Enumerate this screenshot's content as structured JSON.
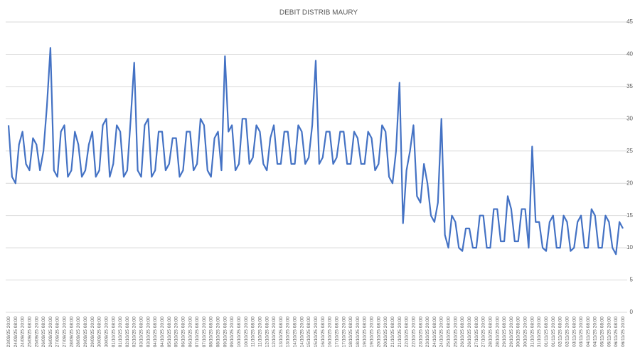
{
  "chart_data": {
    "type": "line",
    "title": "DEBIT DISTRIB MAURY",
    "categories": [
      "23/09/25 20:00",
      null,
      "24/09/25 08:00",
      null,
      "24/09/25 20:00",
      null,
      "25/09/25 08:00",
      null,
      "25/09/25 20:00",
      null,
      "26/09/25 08:00",
      null,
      "26/09/25 20:00",
      null,
      "27/09/25 08:00",
      null,
      "27/09/25 20:00",
      null,
      "28/09/25 08:00",
      null,
      "28/09/25 20:00",
      null,
      "29/09/25 08:00",
      null,
      "29/09/25 20:00",
      null,
      "30/09/25 08:00",
      null,
      "30/09/25 20:00",
      null,
      "01/10/25 08:00",
      null,
      "01/10/25 20:00",
      null,
      "02/10/25 08:00",
      null,
      "02/10/25 20:00",
      null,
      "03/10/25 08:00",
      null,
      "03/10/25 20:00",
      null,
      "04/10/25 08:00",
      null,
      "04/10/25 20:00",
      null,
      "05/10/25 08:00",
      null,
      "05/10/25 20:00",
      null,
      "06/10/25 08:00",
      null,
      "06/10/25 20:00",
      null,
      "07/10/25 08:00",
      null,
      "07/10/25 20:00",
      null,
      "08/10/25 08:00",
      null,
      "08/10/25 20:00",
      null,
      "09/10/25 08:00",
      null,
      "09/10/25 20:00",
      null,
      "10/10/25 08:00",
      null,
      "10/10/25 20:00",
      null,
      "11/10/25 08:00",
      null,
      "11/10/25 20:00",
      null,
      "12/10/25 08:00",
      null,
      "12/10/25 20:00",
      null,
      "13/10/25 08:00",
      null,
      "13/10/25 20:00",
      null,
      "14/10/25 08:00",
      null,
      "14/10/25 20:00",
      null,
      "15/10/25 08:00",
      null,
      "15/10/25 20:00",
      null,
      "16/10/25 08:00",
      null,
      "16/10/25 20:00",
      null,
      "17/10/25 08:00",
      null,
      "17/10/25 20:00",
      null,
      "18/10/25 08:00",
      null,
      "18/10/25 20:00",
      null,
      "19/10/25 08:00",
      null,
      "19/10/25 20:00",
      null,
      "20/10/25 08:00",
      null,
      "20/10/25 20:00",
      null,
      "21/10/25 08:00",
      null,
      "21/10/25 20:00",
      null,
      "22/10/25 08:00",
      null,
      "22/10/25 20:00",
      null,
      "23/10/25 08:00",
      null,
      "23/10/25 20:00",
      null,
      "24/10/25 08:00",
      null,
      "24/10/25 20:00",
      null,
      "25/10/25 08:00",
      null,
      "25/10/25 20:00",
      null,
      "26/10/25 08:00",
      null,
      "26/10/25 20:00",
      null,
      "27/10/25 08:00",
      null,
      "27/10/25 20:00",
      null,
      "28/10/25 08:00",
      null,
      "28/10/25 20:00",
      null,
      "29/10/25 08:00",
      null,
      "29/10/25 20:00",
      null,
      "30/10/25 08:00",
      null,
      "30/10/25 20:00",
      null,
      "31/10/25 08:00",
      null,
      "31/10/25 20:00",
      null,
      "01/11/25 08:00",
      null,
      "01/11/25 20:00",
      null,
      "02/11/25 08:00",
      null,
      "02/11/25 20:00",
      null,
      "03/11/25 08:00",
      null,
      "03/11/25 20:00",
      null,
      "04/11/25 08:00",
      null,
      "04/11/25 20:00",
      null,
      "05/11/25 08:00",
      null,
      "05/11/25 20:00",
      null,
      "06/11/25 08:00",
      null,
      "06/11/25 20:00"
    ],
    "values": [
      29,
      21,
      20,
      26,
      28,
      23,
      22,
      27,
      26,
      22,
      25,
      32,
      41,
      22,
      21,
      28,
      29,
      21,
      22,
      28,
      26,
      21,
      22,
      26,
      28,
      21,
      22,
      29,
      30,
      21,
      23,
      29,
      28,
      21,
      22,
      30,
      38.7,
      22,
      21,
      29,
      30,
      21,
      22,
      28,
      28,
      22,
      23,
      27,
      27,
      21,
      22,
      28,
      28,
      22,
      23,
      30,
      29,
      22,
      21,
      27,
      28,
      22,
      39.7,
      28,
      29,
      22,
      23,
      30,
      30,
      23,
      24,
      29,
      28,
      23,
      22,
      27,
      29,
      23,
      23,
      28,
      28,
      23,
      23,
      29,
      28,
      23,
      24,
      29,
      39,
      23,
      24,
      28,
      28,
      23,
      24,
      28,
      28,
      23,
      23,
      28,
      27,
      23,
      23,
      28,
      27,
      22,
      23,
      29,
      28,
      21,
      20,
      25,
      35.6,
      13.8,
      22,
      25,
      29,
      18,
      17,
      23,
      20,
      15,
      14,
      17,
      30,
      12,
      10,
      15,
      14,
      10,
      9.5,
      13,
      13,
      10,
      10,
      15,
      15,
      10,
      10,
      16,
      16,
      11,
      11,
      18,
      16,
      11,
      11,
      16,
      16,
      10,
      25.7,
      14,
      14,
      10,
      9.5,
      14,
      15,
      10,
      10,
      15,
      14,
      9.5,
      10,
      14,
      15,
      10,
      10,
      16,
      15,
      10,
      10,
      15,
      14,
      10,
      9,
      14,
      13
    ],
    "color": "#4472c4",
    "ylim": [
      0,
      45
    ],
    "yticks": [
      0,
      5,
      10,
      15,
      20,
      25,
      30,
      35,
      40,
      45
    ],
    "grid": true,
    "y_axis_side": "right"
  }
}
